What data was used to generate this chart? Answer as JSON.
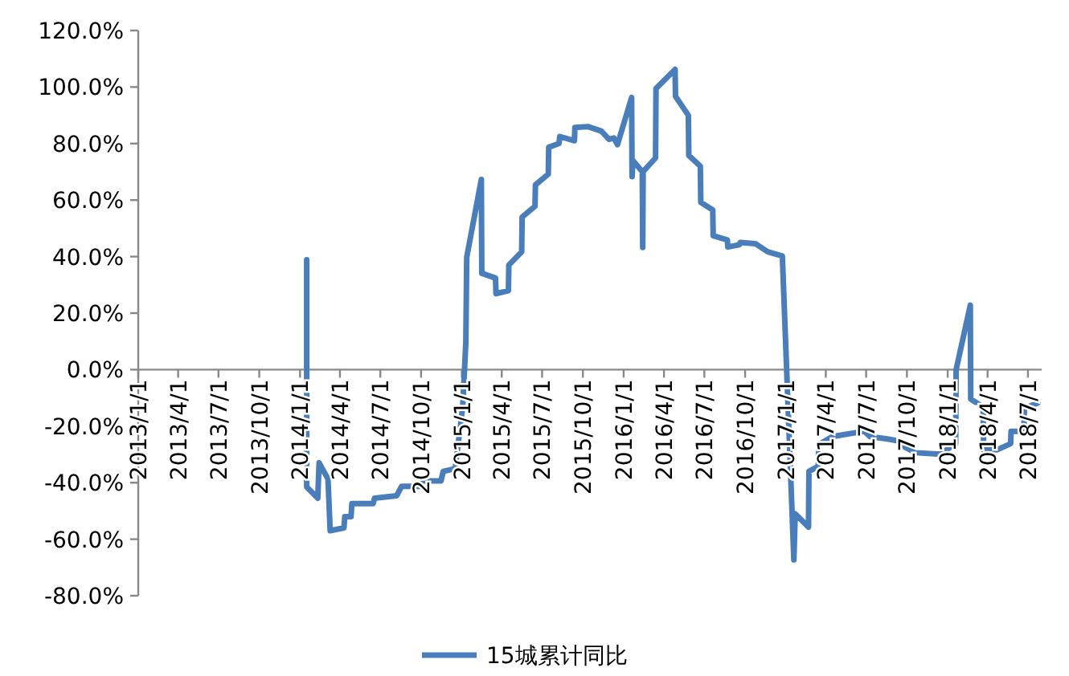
{
  "chart_data": {
    "type": "line",
    "legend": "bottom",
    "xlim": [
      "2013-01-01",
      "2018-08-01"
    ],
    "xticks": [
      {
        "value": "2013-01-01",
        "label": "2013/1/1"
      },
      {
        "value": "2013-04-01",
        "label": "2013/4/1"
      },
      {
        "value": "2013-07-01",
        "label": "2013/7/1"
      },
      {
        "value": "2013-10-01",
        "label": "2013/10/1"
      },
      {
        "value": "2014-01-01",
        "label": "2014/1/1"
      },
      {
        "value": "2014-04-01",
        "label": "2014/4/1"
      },
      {
        "value": "2014-07-01",
        "label": "2014/7/1"
      },
      {
        "value": "2014-10-01",
        "label": "2014/10/1"
      },
      {
        "value": "2015-01-01",
        "label": "2015/1/1"
      },
      {
        "value": "2015-04-01",
        "label": "2015/4/1"
      },
      {
        "value": "2015-07-01",
        "label": "2015/7/1"
      },
      {
        "value": "2015-10-01",
        "label": "2015/10/1"
      },
      {
        "value": "2016-01-01",
        "label": "2016/1/1"
      },
      {
        "value": "2016-04-01",
        "label": "2016/4/1"
      },
      {
        "value": "2016-07-01",
        "label": "2016/7/1"
      },
      {
        "value": "2016-10-01",
        "label": "2016/10/1"
      },
      {
        "value": "2017-01-01",
        "label": "2017/1/1"
      },
      {
        "value": "2017-04-01",
        "label": "2017/4/1"
      },
      {
        "value": "2017-07-01",
        "label": "2017/7/1"
      },
      {
        "value": "2017-10-01",
        "label": "2017/10/1"
      },
      {
        "value": "2018-01-01",
        "label": "2018/1/1"
      },
      {
        "value": "2018-04-01",
        "label": "2018/4/1"
      },
      {
        "value": "2018-07-01",
        "label": "2018/7/1"
      }
    ],
    "ylim": [
      -80,
      120
    ],
    "yticks": [
      {
        "value": -80,
        "label": "-80.0%"
      },
      {
        "value": -60,
        "label": "-60.0%"
      },
      {
        "value": -40,
        "label": "-40.0%"
      },
      {
        "value": -20,
        "label": "-20.0%"
      },
      {
        "value": 0,
        "label": "0.0%"
      },
      {
        "value": 20,
        "label": "20.0%"
      },
      {
        "value": 40,
        "label": "40.0%"
      },
      {
        "value": 60,
        "label": "60.0%"
      },
      {
        "value": 80,
        "label": "80.0%"
      },
      {
        "value": 100,
        "label": "100.0%"
      },
      {
        "value": 120,
        "label": "120.0%"
      }
    ],
    "series": [
      {
        "name": "15城累计同比",
        "color": "#4a7ebb",
        "x": [
          "2014-01-16",
          "2014-01-16",
          "2014-02-10",
          "2014-02-13",
          "2014-03-05",
          "2014-03-10",
          "2014-04-10",
          "2014-04-12",
          "2014-04-26",
          "2014-04-28",
          "2014-06-15",
          "2014-06-18",
          "2014-08-07",
          "2014-08-18",
          "2014-09-28",
          "2014-10-01",
          "2014-11-15",
          "2014-11-20",
          "2014-12-17",
          "2015-01-03",
          "2015-01-10",
          "2015-01-12",
          "2015-02-14",
          "2015-02-15",
          "2015-03-18",
          "2015-03-19",
          "2015-04-16",
          "2015-04-17",
          "2015-05-16",
          "2015-05-17",
          "2015-06-15",
          "2015-06-16",
          "2015-07-15",
          "2015-07-16",
          "2015-08-08",
          "2015-08-10",
          "2015-09-12",
          "2015-09-13",
          "2015-10-12",
          "2015-11-12",
          "2015-11-29",
          "2015-12-10",
          "2015-12-18",
          "2016-01-19",
          "2016-01-20",
          "2016-01-22",
          "2016-02-12",
          "2016-02-13",
          "2016-02-14",
          "2016-03-13",
          "2016-03-14",
          "2016-04-26",
          "2016-04-27",
          "2016-05-26",
          "2016-05-27",
          "2016-06-22",
          "2016-06-23",
          "2016-07-20",
          "2016-07-21",
          "2016-08-22",
          "2016-08-23",
          "2016-09-18",
          "2016-09-20",
          "2016-10-24",
          "2016-11-21",
          "2016-12-24",
          "2017-01-19",
          "2017-01-22",
          "2017-02-21",
          "2017-02-22",
          "2017-03-15",
          "2017-03-16",
          "2017-04-16",
          "2017-06-27",
          "2017-07-10",
          "2017-08-21",
          "2017-09-20",
          "2017-09-27",
          "2017-10-21",
          "2017-12-15",
          "2018-01-19",
          "2018-01-20",
          "2018-02-21",
          "2018-02-22",
          "2018-03-22",
          "2018-03-23",
          "2018-04-22",
          "2018-05-23",
          "2018-05-24",
          "2018-06-22",
          "2018-06-23",
          "2018-07-23"
        ],
        "values": [
          38.9,
          -41.5,
          -45.5,
          -33,
          -38.7,
          -57,
          -56,
          -52,
          -52,
          -47.4,
          -47.4,
          -45.5,
          -44.6,
          -41.3,
          -41.3,
          -39.4,
          -39.4,
          -36,
          -35,
          -13,
          9.7,
          39.8,
          67.3,
          34.1,
          32.4,
          26.9,
          27.9,
          37,
          41.7,
          54,
          57.8,
          65.4,
          69.2,
          78.7,
          80,
          82.5,
          81,
          85.7,
          86,
          84.4,
          81.5,
          82,
          79.6,
          96.3,
          68.3,
          74,
          70.1,
          43.2,
          70.1,
          74.9,
          99.5,
          106.2,
          96.7,
          90,
          75.8,
          72,
          59.2,
          56.5,
          47.4,
          45.9,
          43.4,
          44.2,
          45,
          44.6,
          41.7,
          40.2,
          -67.3,
          -51,
          -55.7,
          -36,
          -34.2,
          -26.5,
          -23.7,
          -21.8,
          -23.7,
          -24.6,
          -25.5,
          -27.5,
          -29.4,
          -29.9,
          -26.2,
          0,
          22.8,
          -10.4,
          -13.3,
          -28.4,
          -28.4,
          -26.2,
          -21.8,
          -21.8,
          -13.7,
          -11.8
        ]
      }
    ]
  }
}
